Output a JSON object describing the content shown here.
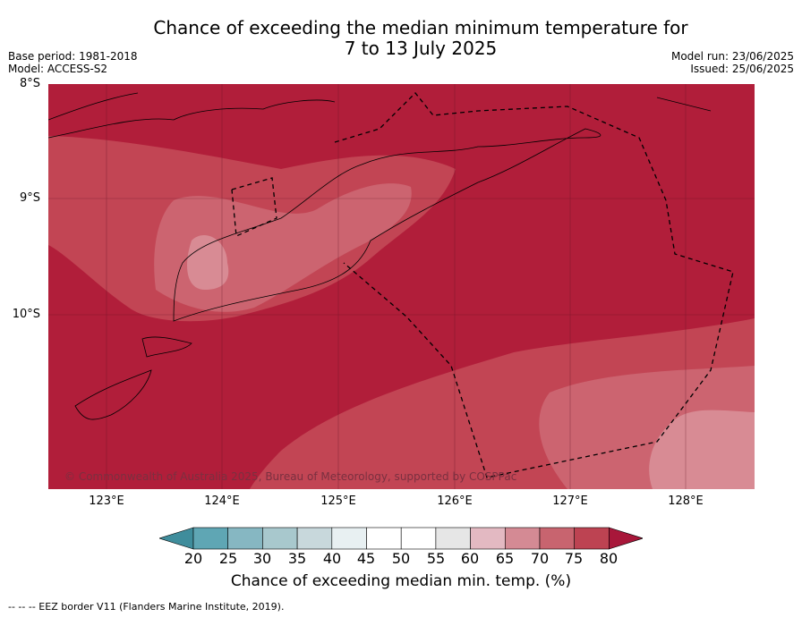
{
  "title_line1": "Chance of exceeding the median minimum temperature for",
  "title_line2": "7 to 13 July 2025",
  "base_period": "Base period: 1981-2018",
  "model": "Model: ACCESS-S2",
  "model_run": "Model run: 23/06/2025",
  "issued": "Issued: 25/06/2025",
  "copyright": "© Commonwealth of Australia 2025, Bureau of Meteorology, supported by COSPPac",
  "lat_labels": [
    "8°S",
    "9°S",
    "10°S"
  ],
  "lon_labels": [
    "123°E",
    "124°E",
    "125°E",
    "126°E",
    "127°E",
    "128°E"
  ],
  "colorbar": {
    "ticks": [
      "20",
      "25",
      "30",
      "35",
      "40",
      "45",
      "50",
      "55",
      "60",
      "65",
      "70",
      "75",
      "80"
    ],
    "colors": [
      "#3f8d9c",
      "#5fa6b4",
      "#86b7c2",
      "#a8c8cd",
      "#c8d8dc",
      "#e8f0f2",
      "#ffffff",
      "#ffffff",
      "#e6e6e6",
      "#e3b9c2",
      "#d48a94",
      "#c8646f",
      "#bd4352",
      "#a8173a"
    ],
    "label": "Chance of exceeding median min. temp. (%)"
  },
  "footnote": "--  --  -- EEZ border V11 (Flanders Marine Institute, 2019).",
  "map_colors": {
    "gt80": "#b11e3a",
    "p75_80": "#c24554",
    "p70_75": "#cc6470",
    "p65_70": "#d88b94"
  }
}
